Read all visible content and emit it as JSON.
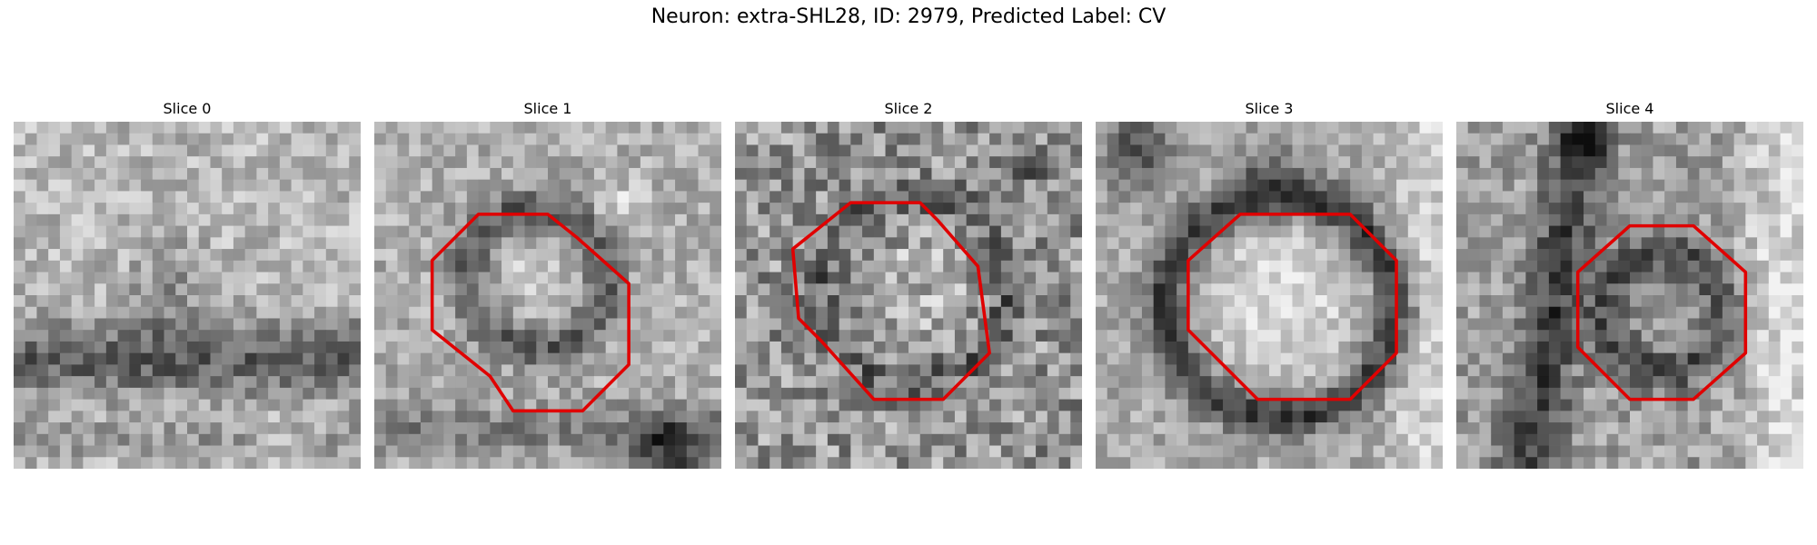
{
  "figure": {
    "title": "Neuron: extra-SHL28, ID: 2979, Predicted Label: CV"
  },
  "panels": [
    {
      "label": "Slice 0",
      "has_contour": false
    },
    {
      "label": "Slice 1",
      "has_contour": true
    },
    {
      "label": "Slice 2",
      "has_contour": true
    },
    {
      "label": "Slice 3",
      "has_contour": true
    },
    {
      "label": "Slice 4",
      "has_contour": true
    }
  ],
  "contour_color": "#e00000"
}
